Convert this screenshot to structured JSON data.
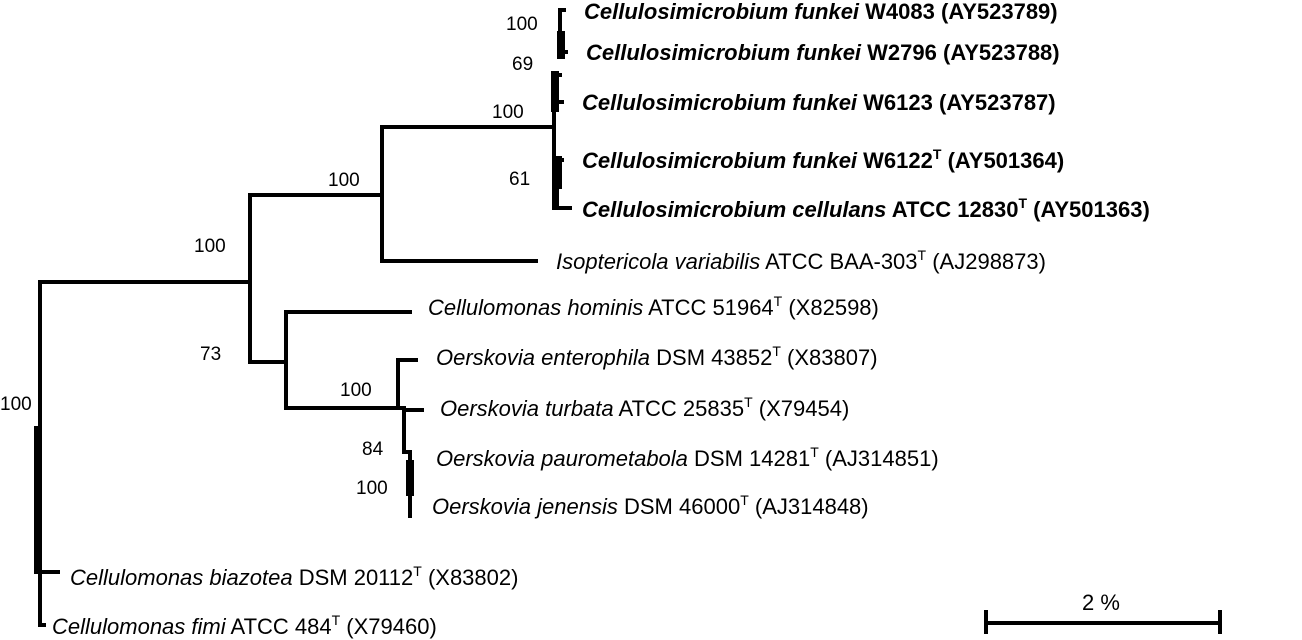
{
  "taxa": [
    {
      "id": "cfunkei-w4083",
      "genus_species": "Cellulosimicrobium funkei",
      "strain": "W4083",
      "type_mark": "",
      "accession": "(AY523789)",
      "bold": true
    },
    {
      "id": "cfunkei-w2796",
      "genus_species": "Cellulosimicrobium funkei",
      "strain": "W2796",
      "type_mark": "",
      "accession": "(AY523788)",
      "bold": true
    },
    {
      "id": "cfunkei-w6123",
      "genus_species": "Cellulosimicrobium funkei",
      "strain": "W6123",
      "type_mark": "",
      "accession": "(AY523787)",
      "bold": true
    },
    {
      "id": "cfunkei-w6122",
      "genus_species": "Cellulosimicrobium funkei",
      "strain": "W6122",
      "type_mark": "T",
      "accession": "(AY501364)",
      "bold": true
    },
    {
      "id": "ccellulans",
      "genus_species": "Cellulosimicrobium cellulans",
      "strain": "ATCC 12830",
      "type_mark": "T",
      "accession": "(AY501363)",
      "bold": true
    },
    {
      "id": "ivariabilis",
      "genus_species": "Isoptericola variabilis",
      "strain": "ATCC BAA-303",
      "type_mark": "T",
      "accession": "(AJ298873)",
      "bold": false
    },
    {
      "id": "chominis",
      "genus_species": "Cellulomonas hominis",
      "strain": "ATCC 51964",
      "type_mark": "T",
      "accession": "(X82598)",
      "bold": false
    },
    {
      "id": "oenterophila",
      "genus_species": "Oerskovia enterophila",
      "strain": "DSM 43852",
      "type_mark": "T",
      "accession": "(X83807)",
      "bold": false
    },
    {
      "id": "oturbata",
      "genus_species": "Oerskovia turbata",
      "strain": "ATCC 25835",
      "type_mark": "T",
      "accession": "(X79454)",
      "bold": false
    },
    {
      "id": "opaurometabola",
      "genus_species": "Oerskovia paurometabola",
      "strain": "DSM 14281",
      "type_mark": "T",
      "accession": "(AJ314851)",
      "bold": false
    },
    {
      "id": "ojenensis",
      "genus_species": "Oerskovia jenensis",
      "strain": "DSM 46000",
      "type_mark": "T",
      "accession": "(AJ314848)",
      "bold": false
    },
    {
      "id": "cbiazotea",
      "genus_species": "Cellulomonas biazotea",
      "strain": "DSM 20112",
      "type_mark": "T",
      "accession": "(X83802)",
      "bold": false
    },
    {
      "id": "cfimi",
      "genus_species": "Cellulomonas fimi",
      "strain": "ATCC 484",
      "type_mark": "T",
      "accession": "(X79460)",
      "bold": false
    }
  ],
  "bootstrap": {
    "cfunkei_w4083_w2796": "100",
    "cfunkei_w6123_group": "69",
    "cellulosimicrobium_clade": "100",
    "w6122_cellulans": "61",
    "cellulosimicrobium_isoptericola": "100",
    "upper_clade": "100",
    "cellulomonas_oerskovia": "73",
    "oerskovia_clade": "100",
    "oerskovia_turbata_group": "84",
    "paurometabola_jenensis": "100",
    "root": "100"
  },
  "scale_bar": {
    "label": "2 %"
  }
}
